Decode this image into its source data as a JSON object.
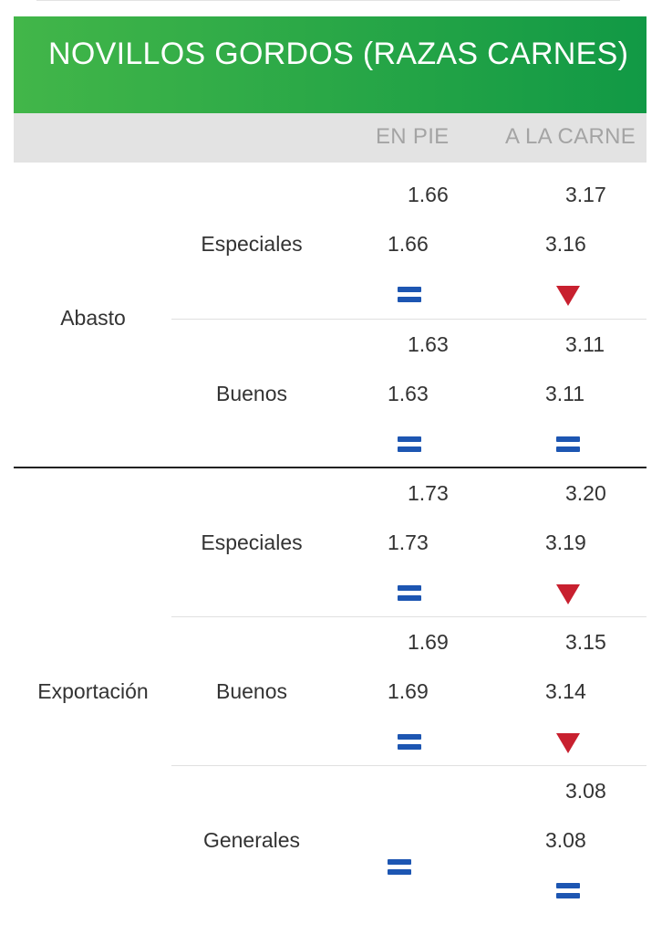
{
  "title": "NOVILLOS GORDOS (RAZAS CARNES)",
  "columns": {
    "en_pie": "EN PIE",
    "a_la_carne": "A LA CARNE"
  },
  "categories": [
    {
      "name": "Abasto",
      "rows": [
        {
          "name": "Especiales",
          "en_pie": {
            "prev": "1.66",
            "curr": "1.66",
            "trend": "equal"
          },
          "a_la_carne": {
            "prev": "3.17",
            "curr": "3.16",
            "trend": "down"
          }
        },
        {
          "name": "Buenos",
          "en_pie": {
            "prev": "1.63",
            "curr": "1.63",
            "trend": "equal"
          },
          "a_la_carne": {
            "prev": "3.11",
            "curr": "3.11",
            "trend": "equal"
          }
        }
      ]
    },
    {
      "name": "Exportación",
      "rows": [
        {
          "name": "Especiales",
          "en_pie": {
            "prev": "1.73",
            "curr": "1.73",
            "trend": "equal"
          },
          "a_la_carne": {
            "prev": "3.20",
            "curr": "3.19",
            "trend": "down"
          }
        },
        {
          "name": "Buenos",
          "en_pie": {
            "prev": "1.69",
            "curr": "1.69",
            "trend": "equal"
          },
          "a_la_carne": {
            "prev": "3.15",
            "curr": "3.14",
            "trend": "down"
          }
        },
        {
          "name": "Generales",
          "en_pie": {
            "prev": "",
            "curr": "",
            "trend": "equal"
          },
          "a_la_carne": {
            "prev": "3.08",
            "curr": "3.08",
            "trend": "equal"
          }
        }
      ]
    }
  ],
  "colors": {
    "header_start": "#42b649",
    "header_end": "#119945",
    "equal_icon": "#1d56b2",
    "down_icon": "#c8202f"
  }
}
